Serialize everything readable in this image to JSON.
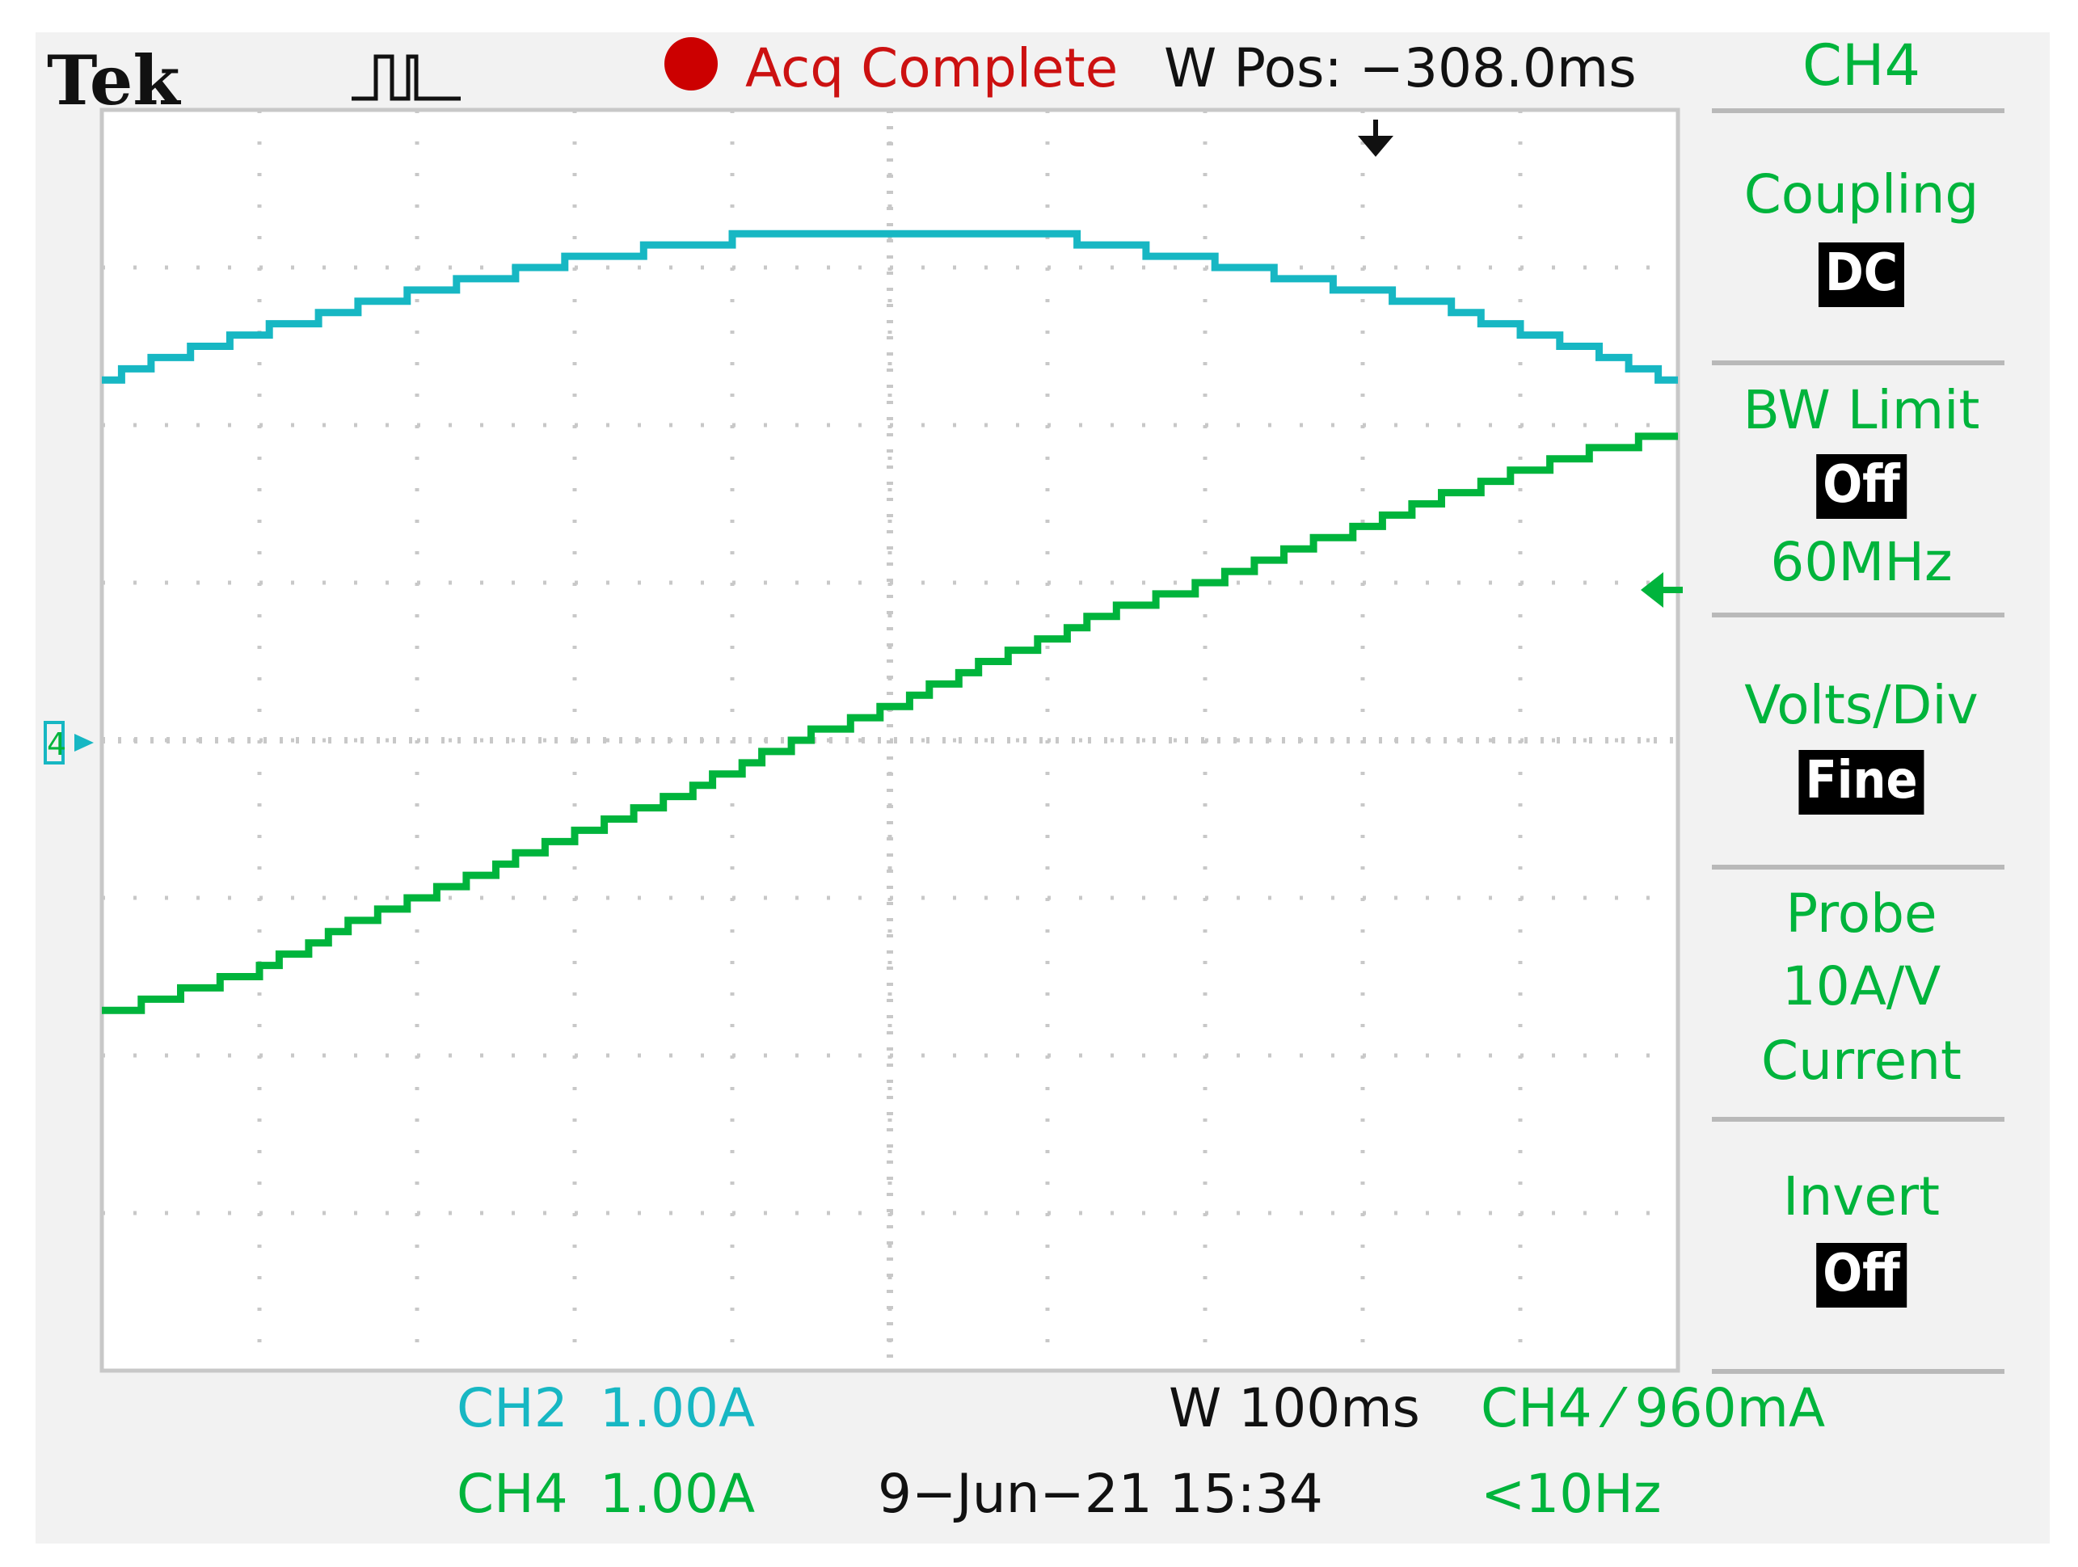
{
  "header": {
    "brand": "Tek",
    "trigger_icon": "trigger-state-icon",
    "acq_status": "Acq Complete",
    "acq_status_color": "#cc0000",
    "wpos": "W Pos: −308.0ms"
  },
  "menu": {
    "channel": "CH4",
    "coupling_label": "Coupling",
    "coupling_value": "DC",
    "bw_label": "BW Limit",
    "bw_value": "Off",
    "bw_freq": "60MHz",
    "volts_label": "Volts/Div",
    "volts_value": "Fine",
    "probe_label": "Probe",
    "probe_value": "10A/V",
    "probe_type": "Current",
    "invert_label": "Invert",
    "invert_value": "Off"
  },
  "bottom": {
    "ch2_name": "CH2",
    "ch2_scale": "1.00A",
    "ch4_name": "CH4",
    "ch4_scale": "1.00A",
    "timebase": "W 100ms",
    "trigger": "CH4 ⁄ 960mA",
    "datetime": "9−Jun−21 15:34",
    "frequency": "<10Hz"
  },
  "colors": {
    "ch2": "#17b7c3",
    "ch4": "#00b43c",
    "background": "#f2f2f2",
    "grid": "#c8c8c8"
  },
  "chart_data": {
    "type": "line",
    "grid": true,
    "x_divisions": 10,
    "y_divisions": 8,
    "xlim": [
      0,
      10
    ],
    "ylim": [
      -4,
      4
    ],
    "series": [
      {
        "name": "CH2",
        "x": [
          0,
          0.5,
          1,
          1.5,
          2,
          2.5,
          3,
          3.5,
          4,
          4.5,
          5,
          5.5,
          6,
          6.5,
          7,
          7.5,
          8,
          8.5,
          9,
          9.5,
          10
        ],
        "values": [
          2.3,
          2.45,
          2.6,
          2.72,
          2.85,
          2.95,
          3.05,
          3.12,
          3.18,
          3.22,
          3.24,
          3.23,
          3.2,
          3.12,
          3.04,
          2.95,
          2.85,
          2.75,
          2.6,
          2.45,
          2.25
        ]
      },
      {
        "name": "CH4",
        "x": [
          0,
          0.5,
          1,
          1.5,
          2,
          2.5,
          3,
          3.5,
          4,
          4.5,
          5,
          5.5,
          6,
          6.5,
          7,
          7.5,
          8,
          8.5,
          9,
          9.5,
          10
        ],
        "values": [
          -1.75,
          -1.6,
          -1.45,
          -1.2,
          -1.0,
          -0.8,
          -0.6,
          -0.4,
          -0.2,
          0.05,
          0.2,
          0.45,
          0.65,
          0.85,
          1.0,
          1.2,
          1.35,
          1.55,
          1.7,
          1.85,
          1.95
        ]
      }
    ]
  }
}
